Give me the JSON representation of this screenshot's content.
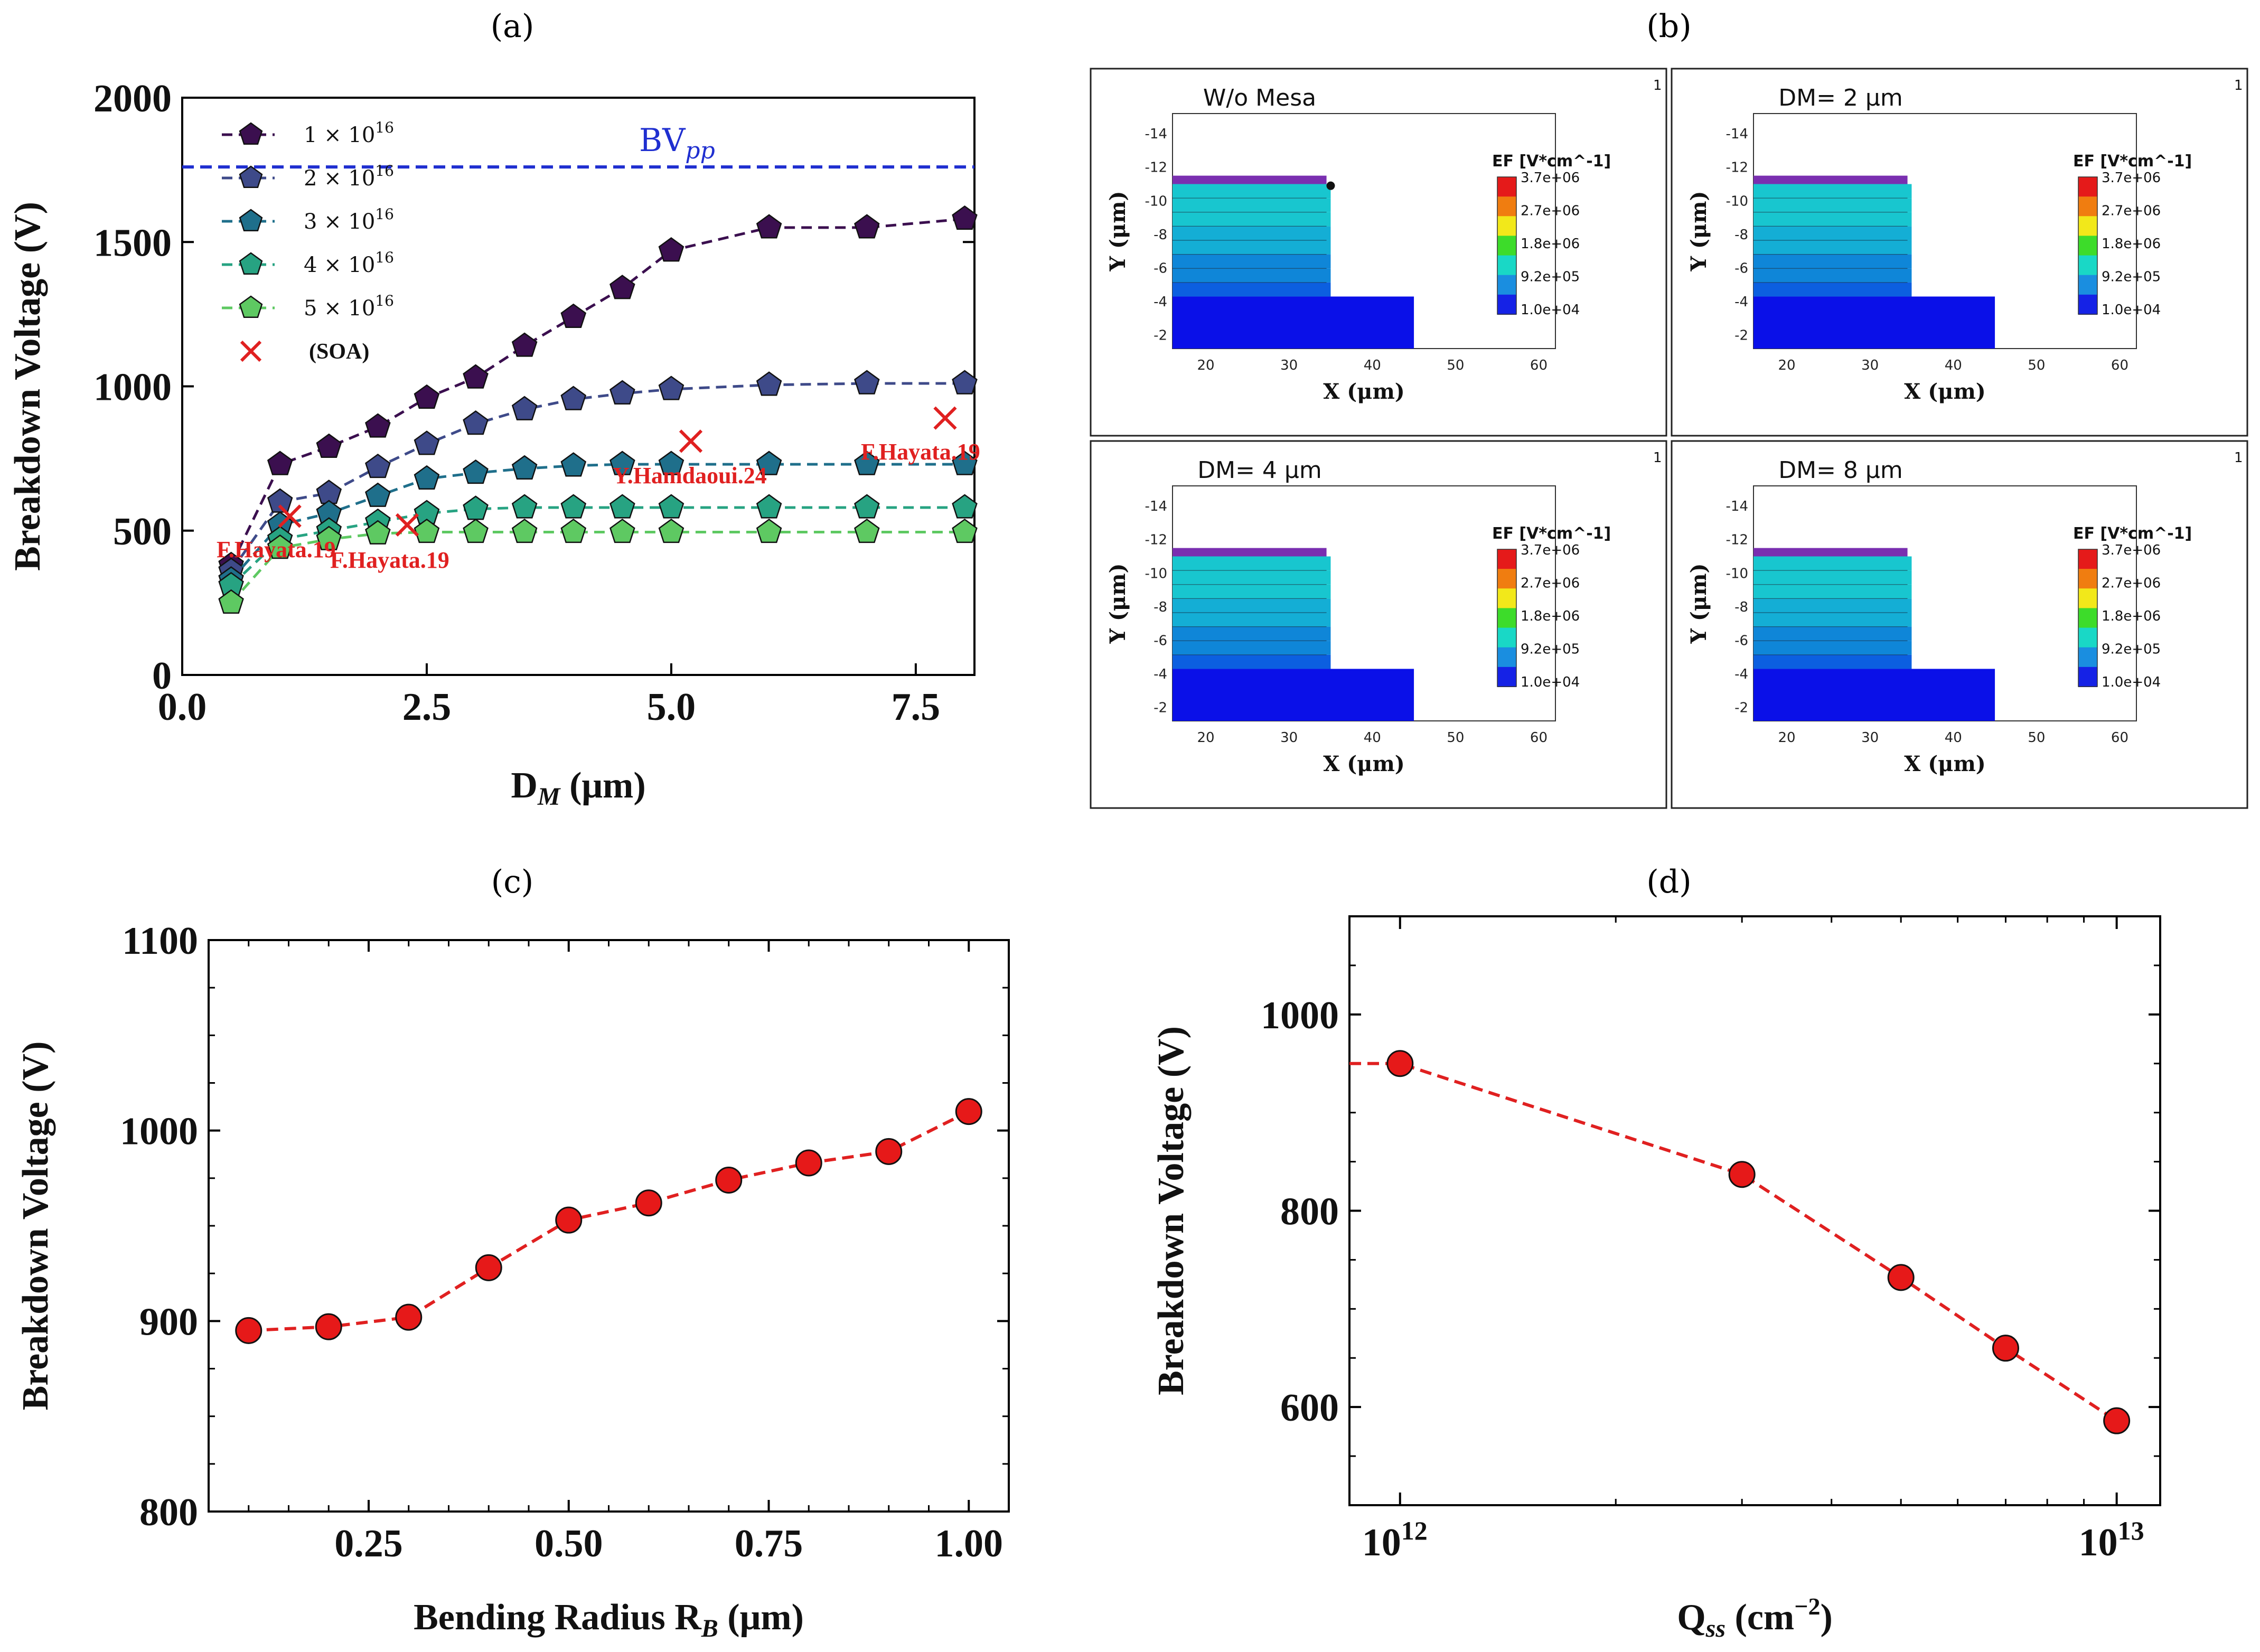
{
  "panels": {
    "a": "(a)",
    "b": "(b)",
    "c": "(c)",
    "d": "(d)"
  },
  "chart_data": [
    {
      "id": "a",
      "type": "line",
      "title": "",
      "xlabel": "D_M (μm)",
      "ylabel": "Breakdown Voltage (V)",
      "xlim": [
        0,
        8.1
      ],
      "ylim": [
        0,
        2000
      ],
      "xticks": [
        0,
        2.5,
        5,
        7.5
      ],
      "xtick_labels": [
        "0.0",
        "2.5",
        "5.0",
        "7.5"
      ],
      "yticks": [
        0,
        500,
        1000,
        1500,
        2000
      ],
      "ytick_labels": [
        "0",
        "500",
        "1000",
        "1500",
        "2000"
      ],
      "x": [
        0.5,
        1,
        1.5,
        2,
        2.5,
        3,
        3.5,
        4,
        4.5,
        5,
        6,
        7,
        8
      ],
      "series": [
        {
          "name": "1 × 10^16",
          "color": "#3b0f4f",
          "values": [
            380,
            730,
            790,
            860,
            960,
            1030,
            1140,
            1240,
            1340,
            1470,
            1550,
            1550,
            1580
          ]
        },
        {
          "name": "2 × 10^16",
          "color": "#3e4a89",
          "values": [
            360,
            600,
            630,
            720,
            800,
            870,
            920,
            955,
            975,
            990,
            1005,
            1010,
            1010
          ]
        },
        {
          "name": "3 × 10^16",
          "color": "#1f6f8b",
          "values": [
            330,
            520,
            560,
            620,
            680,
            700,
            715,
            725,
            730,
            730,
            730,
            730,
            730
          ]
        },
        {
          "name": "4 × 10^16",
          "color": "#27a382",
          "values": [
            310,
            470,
            500,
            530,
            560,
            575,
            580,
            580,
            580,
            580,
            580,
            580,
            580
          ]
        },
        {
          "name": "5 × 10^16",
          "color": "#5ec962",
          "values": [
            250,
            440,
            470,
            490,
            495,
            495,
            495,
            495,
            495,
            495,
            495,
            495,
            495
          ]
        }
      ],
      "legend": {
        "entries": [
          "1 × 10",
          "2 × 10",
          "3 × 10",
          "4 × 10",
          "5 × 10"
        ],
        "exponent": "16",
        "soa_label": "(SOA)"
      },
      "reference_line": {
        "label_main": "BV",
        "label_sub": "pp",
        "value": 1760,
        "color": "#1f2fd0"
      },
      "soa_points": [
        {
          "x": 1.1,
          "y": 550,
          "label": "F.Hayata.19"
        },
        {
          "x": 2.3,
          "y": 520,
          "label": "F.Hayata.19"
        },
        {
          "x": 5.2,
          "y": 810,
          "label": "Y.Hamdaoui.24"
        },
        {
          "x": 7.8,
          "y": 890,
          "label": "F.Hayata.19"
        }
      ]
    },
    {
      "id": "c",
      "type": "line",
      "xlabel": "Bending Radius R_B (μm)",
      "ylabel": "Breakdown Voltage (V)",
      "xlim": [
        0.05,
        1.05
      ],
      "ylim": [
        800,
        1100
      ],
      "xticks": [
        0.25,
        0.5,
        0.75,
        1.0
      ],
      "xtick_labels": [
        "0.25",
        "0.50",
        "0.75",
        "1.00"
      ],
      "yticks": [
        800,
        900,
        1000,
        1100
      ],
      "ytick_labels": [
        "800",
        "900",
        "1000",
        "1100"
      ],
      "x": [
        0.1,
        0.2,
        0.3,
        0.4,
        0.5,
        0.6,
        0.7,
        0.8,
        0.9,
        1.0
      ],
      "values": [
        895,
        897,
        902,
        928,
        953,
        962,
        974,
        983,
        989,
        1010
      ]
    },
    {
      "id": "d",
      "type": "line",
      "xscale": "log",
      "xlabel": "Q_ss (cm^-2)",
      "ylabel": "Breakdown Voltage (V)",
      "xlim": [
        850000000000.0,
        11500000000000.0
      ],
      "ylim": [
        500,
        1100
      ],
      "xticks": [
        1000000000000.0,
        10000000000000.0
      ],
      "xtick_labels": [
        "10",
        "10"
      ],
      "xtick_exps": [
        "12",
        "13"
      ],
      "yticks": [
        600,
        800,
        1000
      ],
      "ytick_labels": [
        "600",
        "800",
        "1000"
      ],
      "x": [
        1000000000000.0,
        3000000000000.0,
        5000000000000.0,
        7000000000000.0,
        10000000000000.0
      ],
      "values": [
        950,
        837,
        732,
        660,
        586
      ],
      "leading_line_start": [
        850000000000.0,
        950
      ]
    }
  ],
  "simulation": {
    "tiles": [
      {
        "title": "W/o Mesa",
        "step": 10.9
      },
      {
        "title": "DM= 2 μm",
        "step": 8.9
      },
      {
        "title": "DM= 4 μm",
        "step": 6.9
      },
      {
        "title": "DM= 8 μm",
        "step": 2.9
      }
    ],
    "corner_mark": "1",
    "yticks": [
      "-14",
      "-12",
      "-10",
      "-8",
      "-6",
      "-4",
      "-2"
    ],
    "xticks": [
      "20",
      "30",
      "40",
      "50",
      "60"
    ],
    "xlabel": "X (μm)",
    "ylabel": "Y (μm)",
    "colorbar_title": "EF [V*cm^-1]",
    "colorbar_labels": [
      "3.7e+06",
      "2.7e+06",
      "1.8e+06",
      "9.2e+05",
      "1.0e+04"
    ],
    "colors": {
      "bg": "#0a10e8",
      "drift": "#18c6cf",
      "drift_dark": "#0f86d8",
      "metal": "#7a2fb0"
    }
  }
}
